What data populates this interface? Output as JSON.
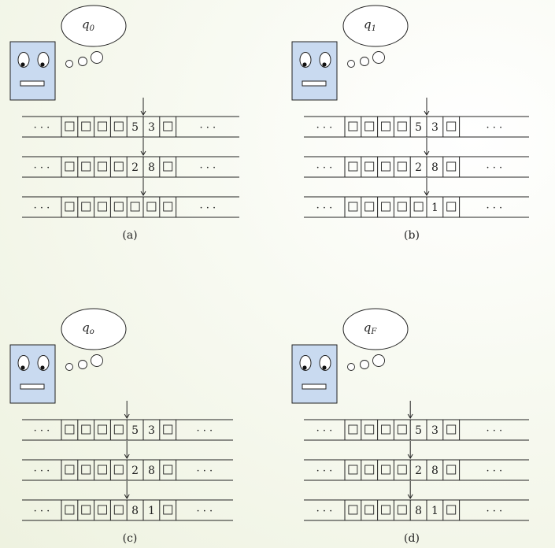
{
  "panels": [
    {
      "state_label": "q",
      "state_sub": "0",
      "caption": "(a)",
      "tapes": [
        {
          "cells": [
            "□",
            "□",
            "□",
            "□",
            "5",
            "3",
            "□"
          ],
          "head": 5
        },
        {
          "cells": [
            "□",
            "□",
            "□",
            "□",
            "2",
            "8",
            "□"
          ],
          "head": 5
        },
        {
          "cells": [
            "□",
            "□",
            "□",
            "□",
            "□",
            "□",
            "□"
          ],
          "head": 5
        }
      ]
    },
    {
      "state_label": "q",
      "state_sub": "1",
      "caption": "(b)",
      "tapes": [
        {
          "cells": [
            "□",
            "□",
            "□",
            "□",
            "5",
            "3",
            "□"
          ],
          "head": 5
        },
        {
          "cells": [
            "□",
            "□",
            "□",
            "□",
            "2",
            "8",
            "□"
          ],
          "head": 5
        },
        {
          "cells": [
            "□",
            "□",
            "□",
            "□",
            "□",
            "1",
            "□"
          ],
          "head": 5
        }
      ]
    },
    {
      "state_label": "q",
      "state_sub": "o",
      "caption": "(c)",
      "tapes": [
        {
          "cells": [
            "□",
            "□",
            "□",
            "□",
            "5",
            "3",
            "□"
          ],
          "head": 4
        },
        {
          "cells": [
            "□",
            "□",
            "□",
            "□",
            "2",
            "8",
            "□"
          ],
          "head": 4
        },
        {
          "cells": [
            "□",
            "□",
            "□",
            "□",
            "8",
            "1",
            "□"
          ],
          "head": 4
        }
      ]
    },
    {
      "state_label": "q",
      "state_sub": "F",
      "caption": "(d)",
      "tapes": [
        {
          "cells": [
            "□",
            "□",
            "□",
            "□",
            "5",
            "3",
            "□"
          ],
          "head": 4
        },
        {
          "cells": [
            "□",
            "□",
            "□",
            "□",
            "2",
            "8",
            "□"
          ],
          "head": 4
        },
        {
          "cells": [
            "□",
            "□",
            "□",
            "□",
            "8",
            "1",
            "□"
          ],
          "head": 4
        }
      ]
    }
  ],
  "ellipsis": "· · ·",
  "colors": {
    "robot_face": "#c9daf0",
    "stroke": "#222222"
  }
}
